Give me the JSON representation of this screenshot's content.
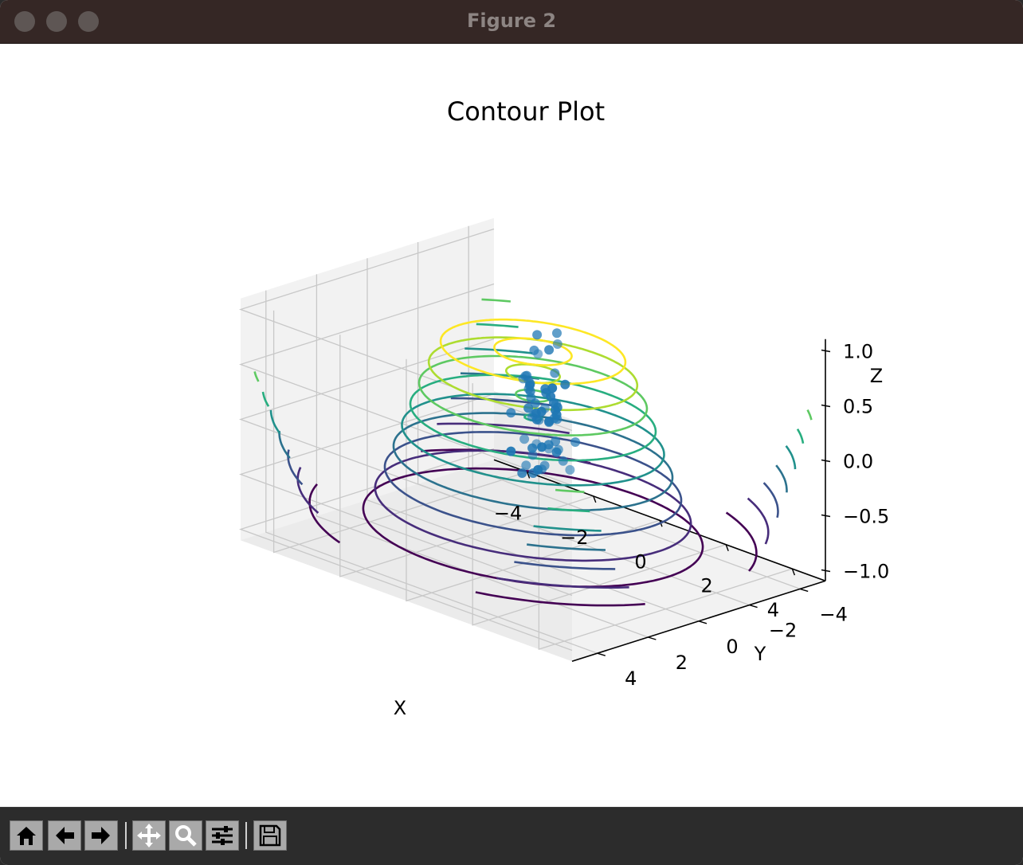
{
  "window": {
    "title": "Figure 2"
  },
  "toolbar": {
    "buttons": [
      "home-icon",
      "back-arrow-icon",
      "forward-arrow-icon",
      "pan-icon",
      "zoom-icon",
      "configure-subplots-icon",
      "save-icon"
    ]
  },
  "chart_data": {
    "type": "3d-contour-scatter",
    "title": "Contour Plot",
    "xlabel": "X",
    "ylabel": "Y",
    "zlabel": "Z",
    "xlim": [
      -5,
      5
    ],
    "ylim": [
      -5,
      5
    ],
    "zlim": [
      -1.1,
      1.1
    ],
    "x_ticks": [
      "−4",
      "−2",
      "0",
      "2",
      "4"
    ],
    "y_ticks": [
      "−4",
      "−2",
      "0",
      "2",
      "4"
    ],
    "z_ticks": [
      "−1.0",
      "−0.5",
      "0.0",
      "0.5",
      "1.0"
    ],
    "colormap": "viridis",
    "contour_levels": [
      -0.8,
      -0.6,
      -0.4,
      -0.2,
      0.0,
      0.2,
      0.4,
      0.6,
      0.8
    ],
    "contour_colors": [
      "#440154",
      "#472d7b",
      "#3b528b",
      "#2c728e",
      "#21918c",
      "#28ae80",
      "#5ec962",
      "#addc30",
      "#fde725"
    ],
    "scatter_color": "#1f77b4",
    "grid": true
  }
}
